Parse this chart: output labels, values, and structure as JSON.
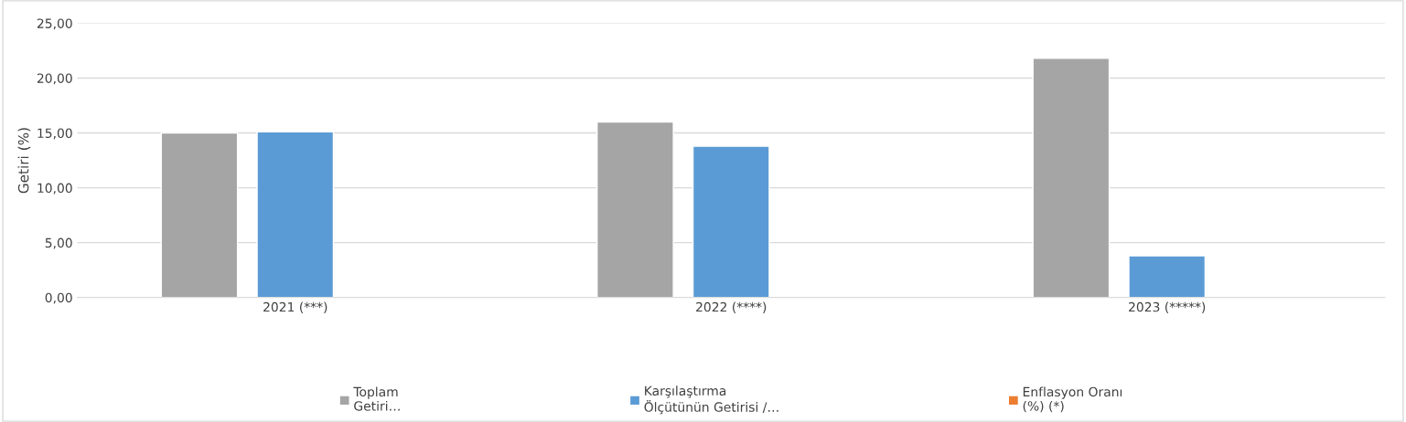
{
  "chart_data": {
    "type": "bar",
    "ylabel": "Getiri (%)",
    "categories": [
      "2021 (***)",
      "2022 (****)",
      "2023 (*****)"
    ],
    "series": [
      {
        "name": "Toplam\nGetiri…",
        "color": "#a5a5a5",
        "values": [
          15.0,
          16.0,
          21.8
        ]
      },
      {
        "name": "Karşılaştırma\nÖlçütünün Getirisi /…",
        "color": "#5b9bd5",
        "values": [
          15.1,
          13.8,
          3.8
        ]
      },
      {
        "name": "Enflasyon Oranı\n(%) (*)",
        "color": "#ed7d31",
        "values": [
          null,
          null,
          null
        ]
      }
    ],
    "ylim": [
      0,
      25
    ],
    "yticks": [
      {
        "value": 0,
        "label": "0,00"
      },
      {
        "value": 5,
        "label": "5,00"
      },
      {
        "value": 10,
        "label": "10,00"
      },
      {
        "value": 15,
        "label": "15,00"
      },
      {
        "value": 20,
        "label": "20,00"
      },
      {
        "value": 25,
        "label": "25,00"
      }
    ],
    "grid": "y",
    "legend": "bottom"
  }
}
